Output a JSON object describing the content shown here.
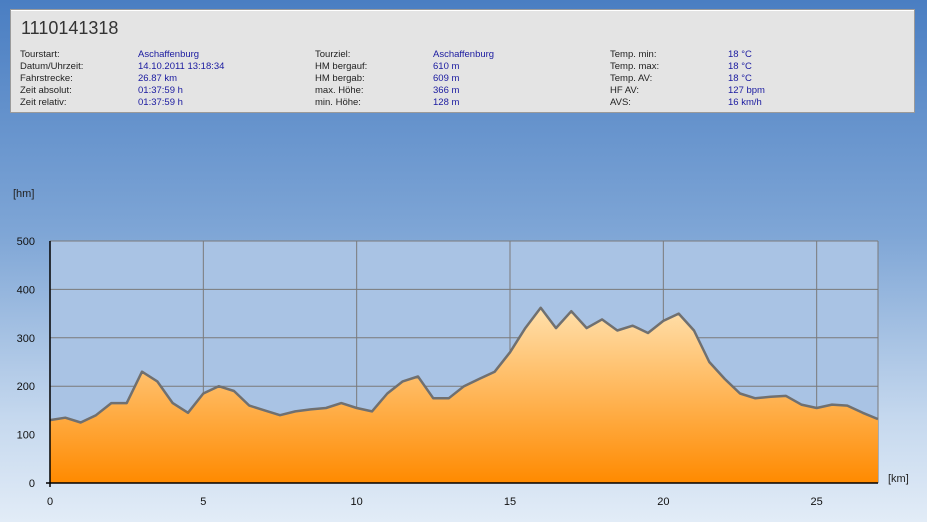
{
  "info": {
    "title": "1110141318",
    "col1": [
      {
        "label": "Tourstart:",
        "value": "Aschaffenburg"
      },
      {
        "label": "Datum/Uhrzeit:",
        "value": "14.10.2011 13:18:34"
      },
      {
        "label": "Fahrstrecke:",
        "value": "26.87 km"
      },
      {
        "label": "Zeit absolut:",
        "value": "01:37:59 h"
      },
      {
        "label": "Zeit relativ:",
        "value": "01:37:59 h"
      }
    ],
    "col2": [
      {
        "label": "Tourziel:",
        "value": "Aschaffenburg"
      },
      {
        "label": "HM bergauf:",
        "value": "610 m"
      },
      {
        "label": "HM bergab:",
        "value": "609 m"
      },
      {
        "label": "max. Höhe:",
        "value": "366 m"
      },
      {
        "label": "min. Höhe:",
        "value": "128 m"
      }
    ],
    "col3": [
      {
        "label": "Temp. min:",
        "value": "18 °C"
      },
      {
        "label": "Temp. max:",
        "value": "18 °C"
      },
      {
        "label": "Temp. AV:",
        "value": "18 °C"
      },
      {
        "label": "HF AV:",
        "value": "127 bpm"
      },
      {
        "label": "AVS:",
        "value": "16 km/h"
      }
    ]
  },
  "chart_data": {
    "type": "area",
    "xlabel": "[km]",
    "ylabel": "[hm]",
    "xlim": [
      0,
      27
    ],
    "ylim": [
      0,
      500
    ],
    "xticks": [
      0,
      5,
      10,
      15,
      20,
      25
    ],
    "yticks": [
      0,
      100,
      200,
      300,
      400,
      500
    ],
    "grid": true,
    "colors": {
      "line": "#707070",
      "fill_top": "#ffe0ac",
      "fill_bottom": "#ff8a00",
      "plot_bg": "#a9c3e4",
      "grid": "#7a7a7a"
    },
    "x": [
      0,
      0.5,
      1.0,
      1.5,
      2.0,
      2.5,
      3.0,
      3.5,
      4.0,
      4.5,
      5.0,
      5.5,
      6.0,
      6.5,
      7.0,
      7.5,
      8.0,
      8.5,
      9.0,
      9.5,
      10.0,
      10.5,
      11.0,
      11.5,
      12.0,
      12.5,
      13.0,
      13.5,
      14.0,
      14.5,
      15.0,
      15.5,
      16.0,
      16.5,
      17.0,
      17.5,
      18.0,
      18.5,
      19.0,
      19.5,
      20.0,
      20.5,
      21.0,
      21.5,
      22.0,
      22.5,
      23.0,
      23.5,
      24.0,
      24.5,
      25.0,
      25.5,
      26.0,
      26.5,
      27.0
    ],
    "y": [
      130,
      135,
      125,
      140,
      165,
      165,
      230,
      210,
      165,
      145,
      185,
      200,
      190,
      160,
      150,
      140,
      148,
      152,
      155,
      165,
      155,
      148,
      185,
      210,
      220,
      175,
      175,
      200,
      215,
      230,
      270,
      320,
      362,
      320,
      355,
      320,
      338,
      315,
      325,
      310,
      335,
      350,
      315,
      250,
      215,
      185,
      175,
      178,
      180,
      162,
      155,
      162,
      160,
      145,
      132
    ]
  }
}
